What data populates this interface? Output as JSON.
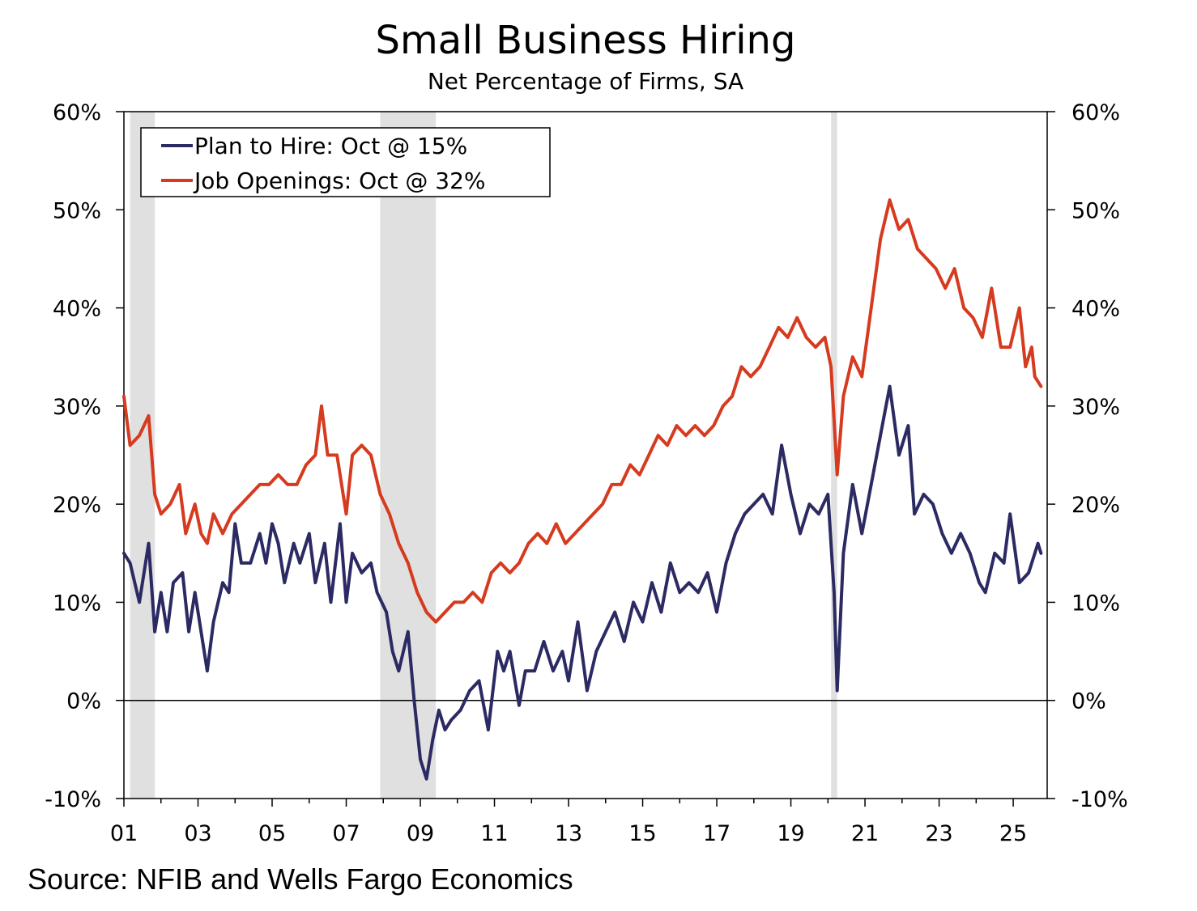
{
  "chart_data": {
    "type": "line",
    "title": "Small Business Hiring",
    "subtitle": "Net Percentage of Firms, SA",
    "source": "Source: NFIB and Wells Fargo Economics",
    "xlabel": "",
    "ylabel": "",
    "x_ticks": [
      "01",
      "03",
      "05",
      "07",
      "09",
      "11",
      "13",
      "15",
      "17",
      "19",
      "21",
      "23",
      "25"
    ],
    "y_ticks": [
      "-10%",
      "0%",
      "10%",
      "20%",
      "30%",
      "40%",
      "50%",
      "60%"
    ],
    "ylim": [
      -10,
      60
    ],
    "xlim": [
      "2001-01",
      "2025-12"
    ],
    "legend_position": "top-left",
    "recessions": [
      {
        "start": "2001-03",
        "end": "2001-11"
      },
      {
        "start": "2007-12",
        "end": "2009-06"
      },
      {
        "start": "2020-02",
        "end": "2020-04"
      }
    ],
    "series": [
      {
        "name": "Plan to Hire: Oct @ 15%",
        "color": "#2b2a63",
        "points": [
          [
            "2001-01",
            15
          ],
          [
            "2001-03",
            14
          ],
          [
            "2001-06",
            10
          ],
          [
            "2001-09",
            16
          ],
          [
            "2001-11",
            7
          ],
          [
            "2002-01",
            11
          ],
          [
            "2002-03",
            7
          ],
          [
            "2002-05",
            12
          ],
          [
            "2002-08",
            13
          ],
          [
            "2002-10",
            7
          ],
          [
            "2002-12",
            11
          ],
          [
            "2003-02",
            7
          ],
          [
            "2003-04",
            3
          ],
          [
            "2003-06",
            8
          ],
          [
            "2003-09",
            12
          ],
          [
            "2003-11",
            11
          ],
          [
            "2004-01",
            18
          ],
          [
            "2004-03",
            14
          ],
          [
            "2004-06",
            14
          ],
          [
            "2004-09",
            17
          ],
          [
            "2004-11",
            14
          ],
          [
            "2005-01",
            18
          ],
          [
            "2005-03",
            16
          ],
          [
            "2005-05",
            12
          ],
          [
            "2005-08",
            16
          ],
          [
            "2005-10",
            14
          ],
          [
            "2006-01",
            17
          ],
          [
            "2006-03",
            12
          ],
          [
            "2006-06",
            16
          ],
          [
            "2006-08",
            10
          ],
          [
            "2006-11",
            18
          ],
          [
            "2007-01",
            10
          ],
          [
            "2007-03",
            15
          ],
          [
            "2007-06",
            13
          ],
          [
            "2007-09",
            14
          ],
          [
            "2007-11",
            11
          ],
          [
            "2008-02",
            9
          ],
          [
            "2008-04",
            5
          ],
          [
            "2008-06",
            3
          ],
          [
            "2008-09",
            7
          ],
          [
            "2008-11",
            0
          ],
          [
            "2009-01",
            -6
          ],
          [
            "2009-03",
            -8
          ],
          [
            "2009-05",
            -4
          ],
          [
            "2009-07",
            -1
          ],
          [
            "2009-09",
            -3
          ],
          [
            "2009-11",
            -2
          ],
          [
            "2010-02",
            -1
          ],
          [
            "2010-05",
            1
          ],
          [
            "2010-08",
            2
          ],
          [
            "2010-11",
            -3
          ],
          [
            "2011-02",
            5
          ],
          [
            "2011-04",
            3
          ],
          [
            "2011-06",
            5
          ],
          [
            "2011-09",
            -0.5
          ],
          [
            "2011-11",
            3
          ],
          [
            "2012-02",
            3
          ],
          [
            "2012-05",
            6
          ],
          [
            "2012-08",
            3
          ],
          [
            "2012-11",
            5
          ],
          [
            "2013-01",
            2
          ],
          [
            "2013-04",
            8
          ],
          [
            "2013-07",
            1
          ],
          [
            "2013-10",
            5
          ],
          [
            "2014-01",
            7
          ],
          [
            "2014-04",
            9
          ],
          [
            "2014-07",
            6
          ],
          [
            "2014-10",
            10
          ],
          [
            "2015-01",
            8
          ],
          [
            "2015-04",
            12
          ],
          [
            "2015-07",
            9
          ],
          [
            "2015-10",
            14
          ],
          [
            "2016-01",
            11
          ],
          [
            "2016-04",
            12
          ],
          [
            "2016-07",
            11
          ],
          [
            "2016-10",
            13
          ],
          [
            "2017-01",
            9
          ],
          [
            "2017-04",
            14
          ],
          [
            "2017-07",
            17
          ],
          [
            "2017-10",
            19
          ],
          [
            "2018-01",
            20
          ],
          [
            "2018-04",
            21
          ],
          [
            "2018-07",
            19
          ],
          [
            "2018-10",
            26
          ],
          [
            "2019-01",
            21
          ],
          [
            "2019-04",
            17
          ],
          [
            "2019-07",
            20
          ],
          [
            "2019-10",
            19
          ],
          [
            "2020-01",
            21
          ],
          [
            "2020-03",
            11
          ],
          [
            "2020-04",
            1
          ],
          [
            "2020-06",
            15
          ],
          [
            "2020-09",
            22
          ],
          [
            "2020-12",
            17
          ],
          [
            "2021-03",
            22
          ],
          [
            "2021-06",
            27
          ],
          [
            "2021-09",
            32
          ],
          [
            "2021-12",
            25
          ],
          [
            "2022-03",
            28
          ],
          [
            "2022-05",
            19
          ],
          [
            "2022-08",
            21
          ],
          [
            "2022-11",
            20
          ],
          [
            "2023-02",
            17
          ],
          [
            "2023-05",
            15
          ],
          [
            "2023-08",
            17
          ],
          [
            "2023-11",
            15
          ],
          [
            "2024-02",
            12
          ],
          [
            "2024-04",
            11
          ],
          [
            "2024-07",
            15
          ],
          [
            "2024-10",
            14
          ],
          [
            "2024-12",
            19
          ],
          [
            "2025-03",
            12
          ],
          [
            "2025-06",
            13
          ],
          [
            "2025-09",
            16
          ],
          [
            "2025-10",
            15
          ]
        ]
      },
      {
        "name": "Job Openings: Oct @ 32%",
        "color": "#d63a1f",
        "points": [
          [
            "2001-01",
            31
          ],
          [
            "2001-03",
            26
          ],
          [
            "2001-06",
            27
          ],
          [
            "2001-09",
            29
          ],
          [
            "2001-11",
            21
          ],
          [
            "2002-01",
            19
          ],
          [
            "2002-04",
            20
          ],
          [
            "2002-07",
            22
          ],
          [
            "2002-09",
            17
          ],
          [
            "2002-12",
            20
          ],
          [
            "2003-02",
            17
          ],
          [
            "2003-04",
            16
          ],
          [
            "2003-06",
            19
          ],
          [
            "2003-09",
            17
          ],
          [
            "2003-12",
            19
          ],
          [
            "2004-03",
            20
          ],
          [
            "2004-06",
            21
          ],
          [
            "2004-09",
            22
          ],
          [
            "2004-12",
            22
          ],
          [
            "2005-03",
            23
          ],
          [
            "2005-06",
            22
          ],
          [
            "2005-09",
            22
          ],
          [
            "2005-12",
            24
          ],
          [
            "2006-03",
            25
          ],
          [
            "2006-05",
            30
          ],
          [
            "2006-07",
            25
          ],
          [
            "2006-10",
            25
          ],
          [
            "2007-01",
            19
          ],
          [
            "2007-03",
            25
          ],
          [
            "2007-06",
            26
          ],
          [
            "2007-09",
            25
          ],
          [
            "2007-12",
            21
          ],
          [
            "2008-03",
            19
          ],
          [
            "2008-06",
            16
          ],
          [
            "2008-09",
            14
          ],
          [
            "2008-12",
            11
          ],
          [
            "2009-03",
            9
          ],
          [
            "2009-06",
            8
          ],
          [
            "2009-09",
            9
          ],
          [
            "2009-12",
            10
          ],
          [
            "2010-03",
            10
          ],
          [
            "2010-06",
            11
          ],
          [
            "2010-09",
            10
          ],
          [
            "2010-12",
            13
          ],
          [
            "2011-03",
            14
          ],
          [
            "2011-06",
            13
          ],
          [
            "2011-09",
            14
          ],
          [
            "2011-12",
            16
          ],
          [
            "2012-03",
            17
          ],
          [
            "2012-06",
            16
          ],
          [
            "2012-09",
            18
          ],
          [
            "2012-12",
            16
          ],
          [
            "2013-03",
            17
          ],
          [
            "2013-06",
            18
          ],
          [
            "2013-09",
            19
          ],
          [
            "2013-12",
            20
          ],
          [
            "2014-03",
            22
          ],
          [
            "2014-06",
            22
          ],
          [
            "2014-09",
            24
          ],
          [
            "2014-12",
            23
          ],
          [
            "2015-03",
            25
          ],
          [
            "2015-06",
            27
          ],
          [
            "2015-09",
            26
          ],
          [
            "2015-12",
            28
          ],
          [
            "2016-03",
            27
          ],
          [
            "2016-06",
            28
          ],
          [
            "2016-09",
            27
          ],
          [
            "2016-12",
            28
          ],
          [
            "2017-03",
            30
          ],
          [
            "2017-06",
            31
          ],
          [
            "2017-09",
            34
          ],
          [
            "2017-12",
            33
          ],
          [
            "2018-03",
            34
          ],
          [
            "2018-06",
            36
          ],
          [
            "2018-09",
            38
          ],
          [
            "2018-12",
            37
          ],
          [
            "2019-03",
            39
          ],
          [
            "2019-06",
            37
          ],
          [
            "2019-09",
            36
          ],
          [
            "2019-12",
            37
          ],
          [
            "2020-02",
            34
          ],
          [
            "2020-04",
            23
          ],
          [
            "2020-06",
            31
          ],
          [
            "2020-09",
            35
          ],
          [
            "2020-12",
            33
          ],
          [
            "2021-03",
            40
          ],
          [
            "2021-06",
            47
          ],
          [
            "2021-09",
            51
          ],
          [
            "2021-12",
            48
          ],
          [
            "2022-03",
            49
          ],
          [
            "2022-06",
            46
          ],
          [
            "2022-09",
            45
          ],
          [
            "2022-12",
            44
          ],
          [
            "2023-03",
            42
          ],
          [
            "2023-06",
            44
          ],
          [
            "2023-09",
            40
          ],
          [
            "2023-12",
            39
          ],
          [
            "2024-03",
            37
          ],
          [
            "2024-06",
            42
          ],
          [
            "2024-09",
            36
          ],
          [
            "2024-12",
            36
          ],
          [
            "2025-03",
            40
          ],
          [
            "2025-05",
            34
          ],
          [
            "2025-07",
            36
          ],
          [
            "2025-08",
            33
          ],
          [
            "2025-10",
            32
          ]
        ]
      }
    ]
  }
}
